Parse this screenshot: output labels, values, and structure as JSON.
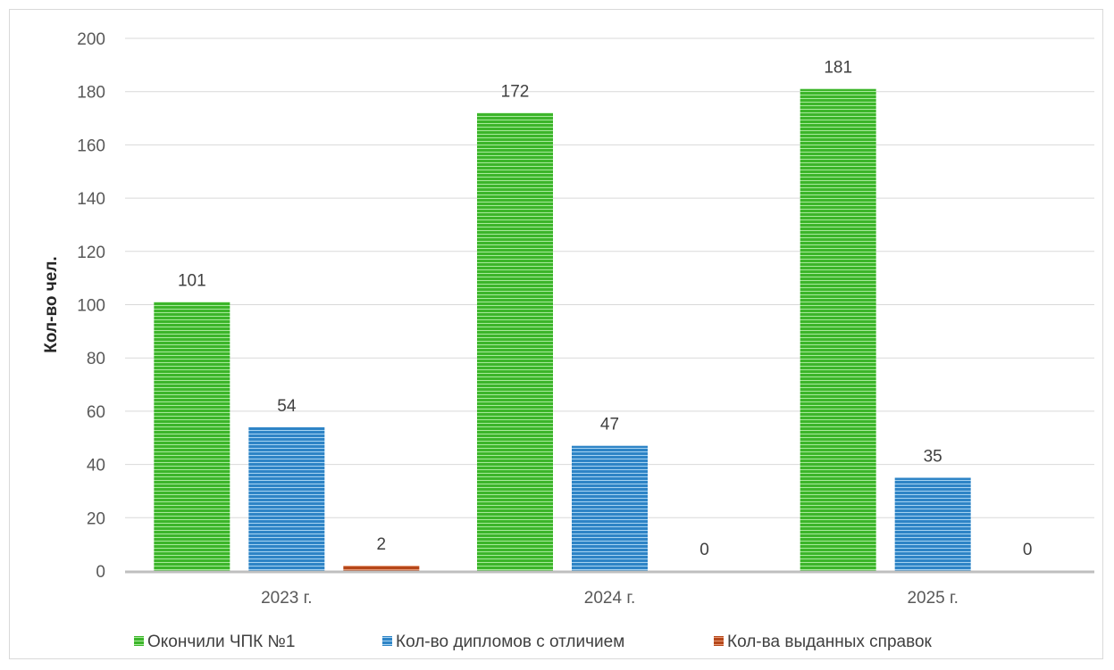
{
  "chart_data": {
    "type": "bar",
    "categories": [
      "2023 г.",
      "2024 г.",
      "2025 г."
    ],
    "series": [
      {
        "name": "Окончили ЧПК №1",
        "values": [
          101,
          172,
          181
        ],
        "color": "#3cb52a",
        "stripe": "#a8ea9b"
      },
      {
        "name": "Кол-во дипломов с отличием",
        "values": [
          54,
          47,
          35
        ],
        "color": "#2e84c6",
        "stripe": "#a6d3f2"
      },
      {
        "name": "Кол-ва выданных справок",
        "values": [
          2,
          0,
          0
        ],
        "color": "#b5471a",
        "stripe": "#e79a76"
      }
    ],
    "ylabel": "Кол-во чел.",
    "xlabel": "",
    "ylim": [
      0,
      200
    ],
    "yticks": [
      0,
      20,
      40,
      60,
      80,
      100,
      120,
      140,
      160,
      180,
      200
    ],
    "grid": true,
    "legend_position": "bottom"
  }
}
